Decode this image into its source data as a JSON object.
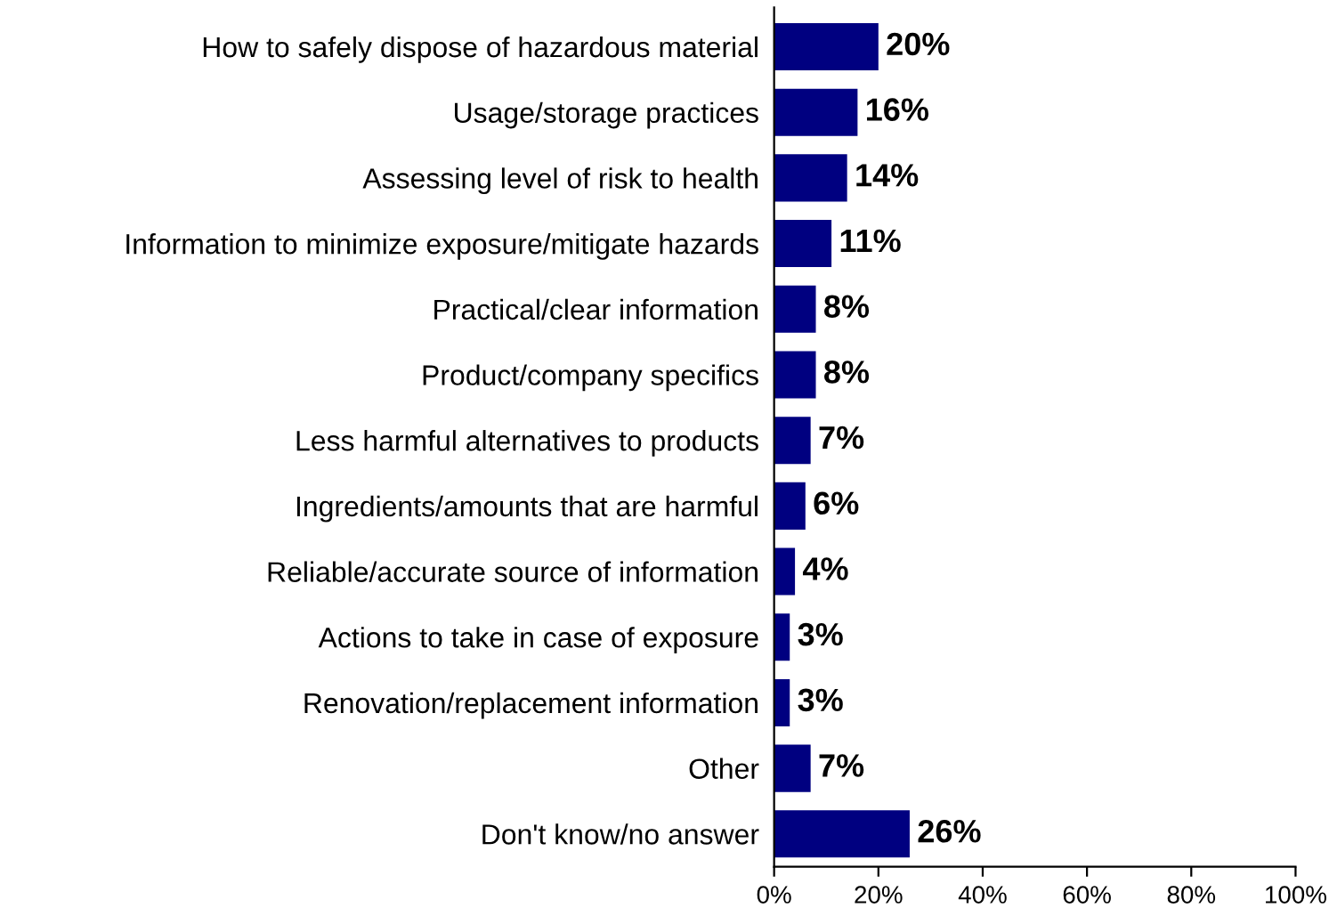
{
  "chart_data": {
    "type": "bar",
    "orientation": "horizontal",
    "categories": [
      "How to safely dispose of hazardous material",
      "Usage/storage practices",
      "Assessing level of risk to health",
      "Information to minimize exposure/mitigate hazards",
      "Practical/clear information",
      "Product/company specifics",
      "Less harmful alternatives to products",
      "Ingredients/amounts that are harmful",
      "Reliable/accurate source of information",
      "Actions to take in case of exposure",
      "Renovation/replacement information",
      "Other",
      "Don't know/no answer"
    ],
    "values": [
      20,
      16,
      14,
      11,
      8,
      8,
      7,
      6,
      4,
      3,
      3,
      7,
      26
    ],
    "value_labels": [
      "20%",
      "16%",
      "14%",
      "11%",
      "8%",
      "8%",
      "7%",
      "6%",
      "4%",
      "3%",
      "3%",
      "7%",
      "26%"
    ],
    "color": "#000080",
    "xlim": [
      0,
      100
    ],
    "xticks": [
      {
        "value": 0,
        "label": "0%"
      },
      {
        "value": 20,
        "label": "20%"
      },
      {
        "value": 40,
        "label": "40%"
      },
      {
        "value": 60,
        "label": "60%"
      },
      {
        "value": 80,
        "label": "80%"
      },
      {
        "value": 100,
        "label": "100%"
      }
    ],
    "grid": false,
    "legend": false
  }
}
